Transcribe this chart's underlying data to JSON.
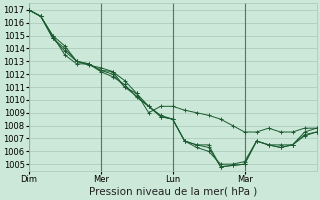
{
  "background_color": "#cce8d8",
  "grid_color": "#a8c8b8",
  "line_color": "#1a5c30",
  "ylabel_text": "Pression niveau de la mer( hPa )",
  "ylim": [
    1004.5,
    1017.5
  ],
  "yticks": [
    1005,
    1006,
    1007,
    1008,
    1009,
    1010,
    1011,
    1012,
    1013,
    1014,
    1015,
    1016,
    1017
  ],
  "xtick_labels": [
    "Dim",
    "Mer",
    "Lun",
    "Mar"
  ],
  "xtick_positions": [
    0,
    36,
    72,
    108
  ],
  "xlim": [
    0,
    144
  ],
  "vline_positions": [
    0,
    36,
    72,
    108
  ],
  "series": [
    {
      "x": [
        0,
        6,
        12,
        18,
        24,
        30,
        36,
        42,
        48,
        54,
        60,
        66,
        72,
        78,
        84,
        90,
        96,
        102,
        108,
        114,
        120,
        126,
        132,
        138,
        144
      ],
      "y": [
        1017.0,
        1016.5,
        1015.0,
        1014.2,
        1013.0,
        1012.7,
        1012.5,
        1012.2,
        1011.5,
        1010.5,
        1009.5,
        1008.8,
        1008.5,
        1006.8,
        1006.5,
        1006.3,
        1004.8,
        1004.9,
        1005.0,
        1006.8,
        1006.5,
        1006.3,
        1006.5,
        1007.2,
        1007.5
      ]
    },
    {
      "x": [
        0,
        6,
        12,
        18,
        24,
        30,
        36,
        42,
        48,
        54,
        60,
        66,
        72,
        78,
        84,
        90,
        96,
        102,
        108,
        114,
        120,
        126,
        132,
        138,
        144
      ],
      "y": [
        1017.0,
        1016.5,
        1014.8,
        1014.0,
        1013.0,
        1012.8,
        1012.3,
        1012.2,
        1011.0,
        1010.3,
        1009.5,
        1008.7,
        1008.5,
        1006.8,
        1006.5,
        1006.5,
        1004.8,
        1004.9,
        1005.0,
        1006.8,
        1006.5,
        1006.5,
        1006.5,
        1007.3,
        1007.5
      ]
    },
    {
      "x": [
        0,
        6,
        12,
        18,
        24,
        30,
        36,
        42,
        48,
        54,
        60,
        66,
        72,
        78,
        84,
        90,
        96,
        102,
        108,
        114,
        120,
        126,
        132,
        138,
        144
      ],
      "y": [
        1017.0,
        1016.5,
        1015.0,
        1013.5,
        1012.8,
        1012.8,
        1012.2,
        1011.8,
        1011.2,
        1010.2,
        1009.5,
        1008.7,
        1008.5,
        1006.8,
        1006.3,
        1006.0,
        1005.0,
        1005.0,
        1005.2,
        1006.8,
        1006.5,
        1006.3,
        1006.5,
        1007.5,
        1007.8
      ]
    },
    {
      "x": [
        0,
        6,
        12,
        18,
        24,
        30,
        36,
        42,
        48,
        54,
        60,
        66,
        72,
        78,
        84,
        90,
        96,
        102,
        108,
        114,
        120,
        126,
        132,
        138,
        144
      ],
      "y": [
        1017.0,
        1016.5,
        1014.8,
        1013.8,
        1013.0,
        1012.8,
        1012.3,
        1012.0,
        1011.0,
        1010.5,
        1009.0,
        1009.5,
        1009.5,
        1009.2,
        1009.0,
        1008.8,
        1008.5,
        1008.0,
        1007.5,
        1007.5,
        1007.8,
        1007.5,
        1007.5,
        1007.8,
        1007.8
      ]
    }
  ],
  "tick_fontsize": 6,
  "axis_label_fontsize": 7.5
}
